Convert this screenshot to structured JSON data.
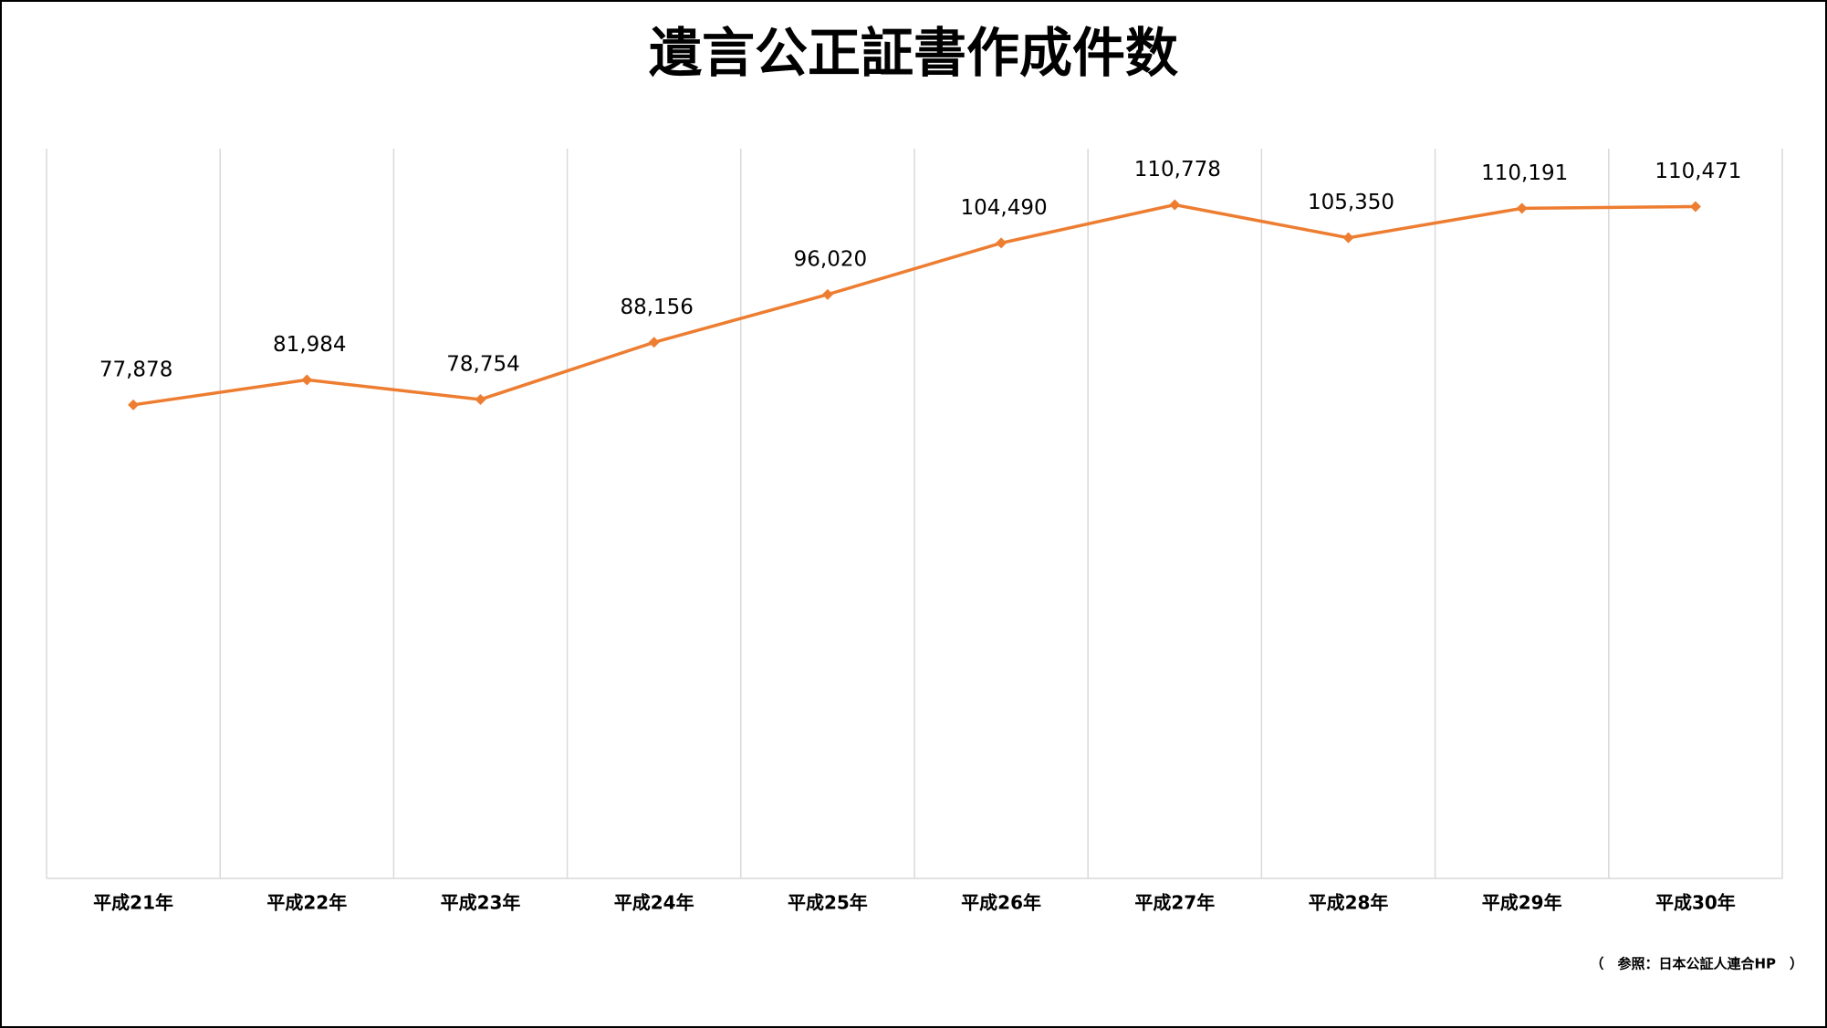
{
  "chart_data": {
    "type": "line",
    "title": "遺言公正証書作成件数",
    "categories": [
      "平成21年",
      "平成22年",
      "平成23年",
      "平成24年",
      "平成25年",
      "平成26年",
      "平成27年",
      "平成28年",
      "平成29年",
      "平成30年"
    ],
    "values": [
      77878,
      81984,
      78754,
      88156,
      96020,
      104490,
      110778,
      105350,
      110191,
      110471
    ],
    "value_labels": [
      "77,878",
      "81,984",
      "78,754",
      "88,156",
      "96,020",
      "104,490",
      "110,778",
      "105,350",
      "110,191",
      "110,471"
    ],
    "color": "#ed7d31",
    "ylim": [
      0,
      120000
    ],
    "grid": true,
    "source": "（　参照：日本公証人連合HP　）"
  }
}
